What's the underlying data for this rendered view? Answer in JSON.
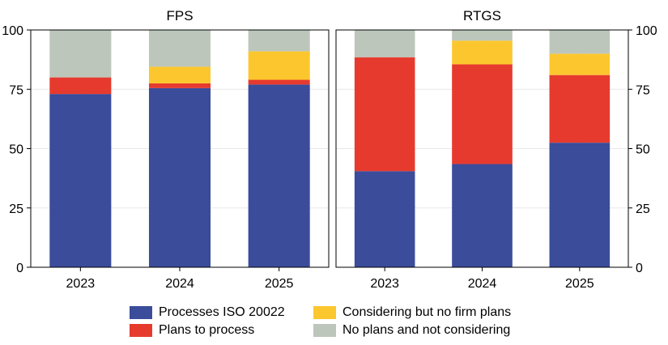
{
  "chart_data": [
    {
      "type": "bar",
      "stacked": true,
      "title": "FPS",
      "categories": [
        "2023",
        "2024",
        "2025"
      ],
      "ylim": [
        0,
        100
      ],
      "yticks": [
        0,
        25,
        50,
        75,
        100
      ],
      "grid": true,
      "series": [
        {
          "name": "Processes ISO 20022",
          "color": "#3a4c9a",
          "values": [
            73,
            75.5,
            77
          ]
        },
        {
          "name": "Plans to process",
          "color": "#e63a2e",
          "values": [
            7,
            2,
            2
          ]
        },
        {
          "name": "Considering but no firm plans",
          "color": "#fcc72e",
          "values": [
            0,
            7,
            12
          ]
        },
        {
          "name": "No plans and not considering",
          "color": "#bdc6bb",
          "values": [
            20,
            15.5,
            9
          ]
        }
      ]
    },
    {
      "type": "bar",
      "stacked": true,
      "title": "RTGS",
      "categories": [
        "2023",
        "2024",
        "2025"
      ],
      "ylim": [
        0,
        100
      ],
      "yticks": [
        0,
        25,
        50,
        75,
        100
      ],
      "grid": true,
      "series": [
        {
          "name": "Processes ISO 20022",
          "color": "#3a4c9a",
          "values": [
            40.5,
            43.5,
            52.5
          ]
        },
        {
          "name": "Plans to process",
          "color": "#e63a2e",
          "values": [
            48,
            42,
            28.5
          ]
        },
        {
          "name": "Considering but no firm plans",
          "color": "#fcc72e",
          "values": [
            0,
            10,
            9
          ]
        },
        {
          "name": "No plans and not considering",
          "color": "#bdc6bb",
          "values": [
            11.5,
            4.5,
            10
          ]
        }
      ]
    }
  ],
  "legend": {
    "placement": "bottom",
    "items": [
      {
        "label": "Processes ISO 20022",
        "color": "#3a4c9a"
      },
      {
        "label": "Plans to process",
        "color": "#e63a2e"
      },
      {
        "label": "Considering but no firm plans",
        "color": "#fcc72e"
      },
      {
        "label": "No plans and not considering",
        "color": "#bdc6bb"
      }
    ]
  }
}
